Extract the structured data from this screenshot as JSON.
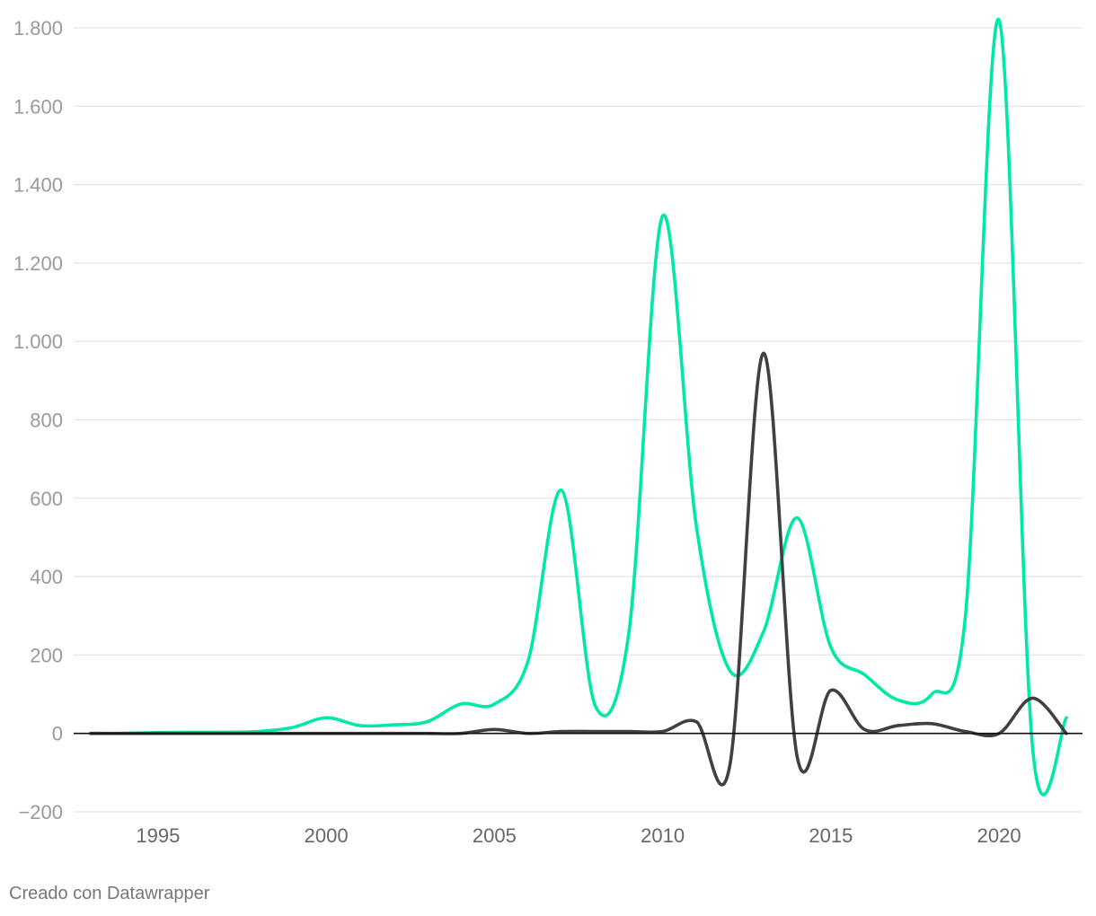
{
  "credit": "Creado con Datawrapper",
  "chart_data": {
    "type": "line",
    "title": "",
    "xlabel": "",
    "ylabel": "",
    "xlim": [
      1993,
      2022
    ],
    "ylim": [
      -200,
      1800
    ],
    "y_ticks": [
      {
        "value": 1800,
        "label": "1.800"
      },
      {
        "value": 1600,
        "label": "1.600"
      },
      {
        "value": 1400,
        "label": "1.400"
      },
      {
        "value": 1200,
        "label": "1.200"
      },
      {
        "value": 1000,
        "label": "1.000"
      },
      {
        "value": 800,
        "label": "800"
      },
      {
        "value": 600,
        "label": "600"
      },
      {
        "value": 400,
        "label": "400"
      },
      {
        "value": 200,
        "label": "200"
      },
      {
        "value": 0,
        "label": "0"
      },
      {
        "value": -200,
        "label": "−200"
      }
    ],
    "x_ticks": [
      {
        "value": 1995,
        "label": "1995"
      },
      {
        "value": 2000,
        "label": "2000"
      },
      {
        "value": 2005,
        "label": "2005"
      },
      {
        "value": 2010,
        "label": "2010"
      },
      {
        "value": 2015,
        "label": "2015"
      },
      {
        "value": 2020,
        "label": "2020"
      }
    ],
    "grid": true,
    "legend": "none",
    "series": [
      {
        "color": "#00e8a8",
        "x": [
          1993,
          1994,
          1995,
          1996,
          1997,
          1998,
          1999,
          2000,
          2001,
          2002,
          2003,
          2004,
          2005,
          2006,
          2007,
          2008,
          2009,
          2010,
          2011,
          2012,
          2013,
          2014,
          2015,
          2016,
          2017,
          2018,
          2019,
          2020,
          2021,
          2022
        ],
        "values": [
          0,
          0,
          2,
          3,
          3,
          5,
          15,
          40,
          20,
          22,
          30,
          75,
          75,
          185,
          620,
          70,
          260,
          1320,
          530,
          160,
          260,
          550,
          220,
          150,
          85,
          100,
          300,
          1820,
          -40,
          40
        ]
      },
      {
        "color": "#404040",
        "x": [
          1993,
          1994,
          1995,
          1996,
          1997,
          1998,
          1999,
          2000,
          2001,
          2002,
          2003,
          2004,
          2005,
          2006,
          2007,
          2008,
          2009,
          2010,
          2011,
          2012,
          2013,
          2014,
          2015,
          2016,
          2017,
          2018,
          2019,
          2020,
          2021,
          2022
        ],
        "values": [
          0,
          0,
          0,
          0,
          0,
          0,
          0,
          0,
          0,
          0,
          0,
          0,
          10,
          0,
          5,
          5,
          5,
          5,
          30,
          -80,
          970,
          -60,
          110,
          10,
          20,
          25,
          5,
          0,
          90,
          0
        ]
      }
    ]
  }
}
